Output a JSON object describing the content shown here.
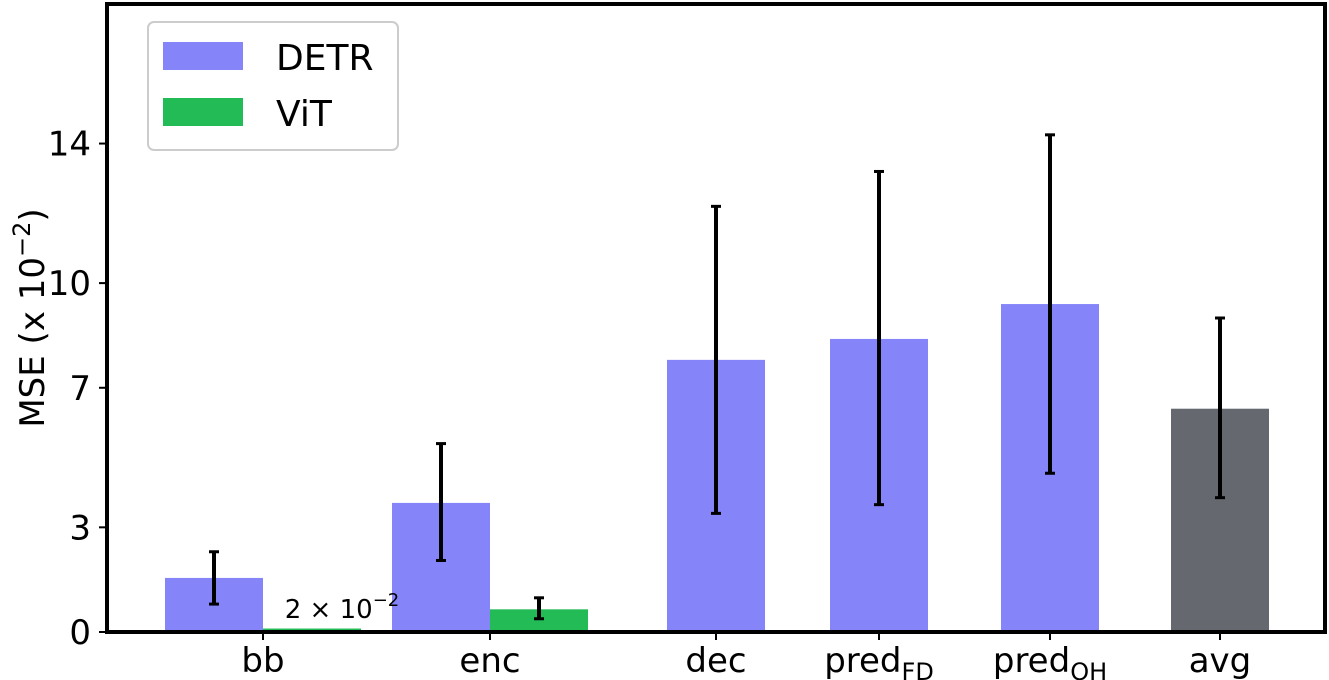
{
  "chart_data": {
    "type": "bar",
    "ylabel": "MSE (x 10",
    "ylabel_exponent": "−2",
    "ylabel_close": ")",
    "ylim": [
      0,
      18
    ],
    "yticks": [
      0,
      3,
      7,
      10,
      14
    ],
    "grid": false,
    "legend_position": "top-left",
    "categories": [
      {
        "base": "bb",
        "sub": ""
      },
      {
        "base": "enc",
        "sub": ""
      },
      {
        "base": "dec",
        "sub": ""
      },
      {
        "base": "pred",
        "sub": "FD"
      },
      {
        "base": "pred",
        "sub": "OH"
      },
      {
        "base": "avg",
        "sub": ""
      }
    ],
    "legend": [
      {
        "name": "DETR",
        "color": "#8585f9"
      },
      {
        "name": "ViT",
        "color": "#22bb55"
      }
    ],
    "bars": [
      {
        "category_index": 0,
        "series": "DETR",
        "value": 1.55,
        "err_low": 0.8,
        "err_high": 2.3,
        "color": "#8585f9",
        "slot": "left"
      },
      {
        "category_index": 0,
        "series": "ViT",
        "value": 0.1,
        "color": "#22bb55",
        "slot": "right"
      },
      {
        "category_index": 1,
        "series": "DETR",
        "value": 3.7,
        "err_low": 2.05,
        "err_high": 5.4,
        "color": "#8585f9",
        "slot": "left"
      },
      {
        "category_index": 1,
        "series": "ViT",
        "value": 0.65,
        "err_low": 0.38,
        "err_high": 0.98,
        "color": "#22bb55",
        "slot": "right"
      },
      {
        "category_index": 2,
        "series": "DETR",
        "value": 7.8,
        "err_low": 3.4,
        "err_high": 12.2,
        "color": "#8585f9",
        "slot": "center"
      },
      {
        "category_index": 3,
        "series": "DETR",
        "value": 8.4,
        "err_low": 3.65,
        "err_high": 13.2,
        "color": "#8585f9",
        "slot": "center"
      },
      {
        "category_index": 4,
        "series": "DETR",
        "value": 9.4,
        "err_low": 4.55,
        "err_high": 14.25,
        "color": "#8585f9",
        "slot": "center"
      },
      {
        "category_index": 5,
        "series": "avg",
        "value": 6.4,
        "err_low": 3.85,
        "err_high": 9.0,
        "color": "#666870",
        "slot": "center"
      }
    ],
    "annotations": [
      {
        "text": "2 × 10",
        "exponent": "−2",
        "category_index": 0,
        "slot": "right",
        "value": 0.1
      }
    ]
  }
}
